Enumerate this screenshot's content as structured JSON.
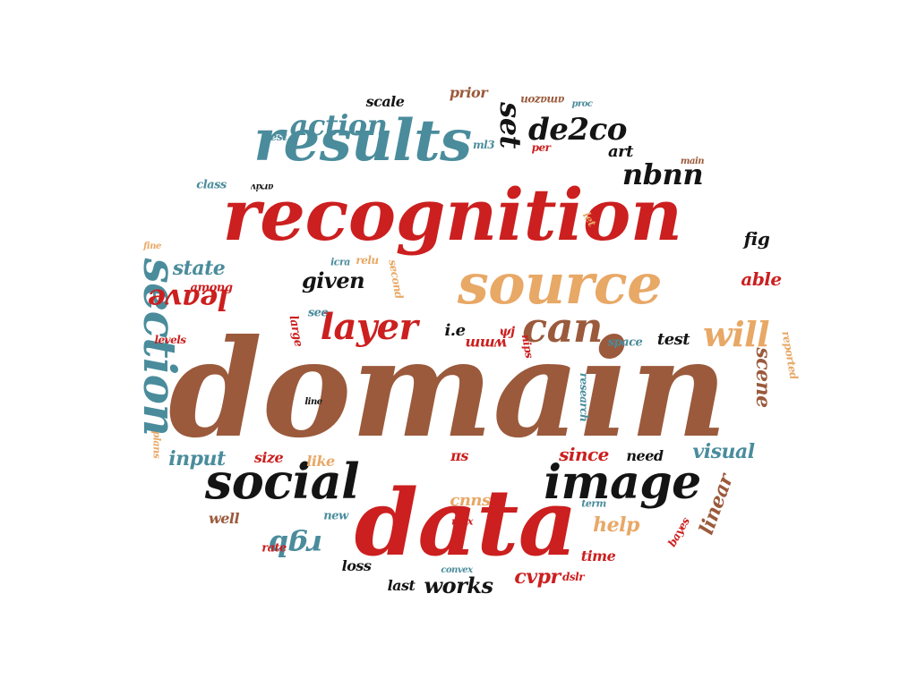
{
  "palette": {
    "red": "#cc1f1f",
    "brown": "#9b5a3c",
    "teal": "#4a8c9c",
    "tan": "#e8a866",
    "black": "#141414"
  },
  "words": [
    {
      "text": "domain",
      "color": "brown"
    },
    {
      "text": "recognition",
      "color": "red"
    },
    {
      "text": "source",
      "color": "tan"
    },
    {
      "text": "data",
      "color": "red"
    },
    {
      "text": "results",
      "color": "teal"
    },
    {
      "text": "social",
      "color": "black"
    },
    {
      "text": "image",
      "color": "black"
    },
    {
      "text": "section",
      "color": "teal"
    },
    {
      "text": "can",
      "color": "brown"
    },
    {
      "text": "will",
      "color": "tan"
    },
    {
      "text": "layer",
      "color": "red"
    },
    {
      "text": "action",
      "color": "teal"
    },
    {
      "text": "de2co",
      "color": "black"
    },
    {
      "text": "nbnn",
      "color": "black"
    },
    {
      "text": "set",
      "color": "black"
    },
    {
      "text": "leave",
      "color": "red"
    },
    {
      "text": "rgb",
      "color": "teal"
    },
    {
      "text": "state",
      "color": "teal"
    },
    {
      "text": "given",
      "color": "black"
    },
    {
      "text": "visual",
      "color": "teal"
    },
    {
      "text": "input",
      "color": "teal"
    },
    {
      "text": "since",
      "color": "red"
    },
    {
      "text": "help",
      "color": "tan"
    },
    {
      "text": "works",
      "color": "black"
    },
    {
      "text": "cvpr",
      "color": "red"
    },
    {
      "text": "linear",
      "color": "brown"
    },
    {
      "text": "scene",
      "color": "brown"
    },
    {
      "text": "able",
      "color": "red"
    },
    {
      "text": "fig",
      "color": "black"
    },
    {
      "text": "art",
      "color": "black"
    },
    {
      "text": "test",
      "color": "black"
    },
    {
      "text": "i.e",
      "color": "black"
    },
    {
      "text": "cnns",
      "color": "tan"
    },
    {
      "text": "size",
      "color": "red"
    },
    {
      "text": "like",
      "color": "tan"
    },
    {
      "text": "need",
      "color": "black"
    },
    {
      "text": "loss",
      "color": "black"
    },
    {
      "text": "last",
      "color": "black"
    },
    {
      "text": "well",
      "color": "brown"
    },
    {
      "text": "time",
      "color": "red"
    },
    {
      "text": "new",
      "color": "teal"
    },
    {
      "text": "rate",
      "color": "red"
    },
    {
      "text": "max",
      "color": "red"
    },
    {
      "text": "term",
      "color": "teal"
    },
    {
      "text": "space",
      "color": "teal"
    },
    {
      "text": "see",
      "color": "teal"
    },
    {
      "text": "large",
      "color": "red"
    },
    {
      "text": "among",
      "color": "red"
    },
    {
      "text": "levels",
      "color": "red"
    },
    {
      "text": "scale",
      "color": "black"
    },
    {
      "text": "prior",
      "color": "brown"
    },
    {
      "text": "amazon",
      "color": "brown"
    },
    {
      "text": "rest",
      "color": "teal"
    },
    {
      "text": "class",
      "color": "teal"
    },
    {
      "text": "arxiv",
      "color": "black"
    },
    {
      "text": "ml3",
      "color": "teal"
    },
    {
      "text": "per",
      "color": "red"
    },
    {
      "text": "proc",
      "color": "teal"
    },
    {
      "text": "main",
      "color": "brown"
    },
    {
      "text": "fine",
      "color": "tan"
    },
    {
      "text": "relu",
      "color": "tan"
    },
    {
      "text": "icra",
      "color": "teal"
    },
    {
      "text": "second",
      "color": "tan"
    },
    {
      "text": "let",
      "color": "tan"
    },
    {
      "text": "ψj",
      "color": "red"
    },
    {
      "text": "wmm",
      "color": "red"
    },
    {
      "text": "nips",
      "color": "red"
    },
    {
      "text": "πs",
      "color": "red"
    },
    {
      "text": "research",
      "color": "teal"
    },
    {
      "text": "reported",
      "color": "tan"
    },
    {
      "text": "line",
      "color": "black"
    },
    {
      "text": "plans",
      "color": "tan"
    },
    {
      "text": "bayes",
      "color": "red"
    },
    {
      "text": "convex",
      "color": "teal"
    },
    {
      "text": "dslr",
      "color": "red"
    }
  ]
}
